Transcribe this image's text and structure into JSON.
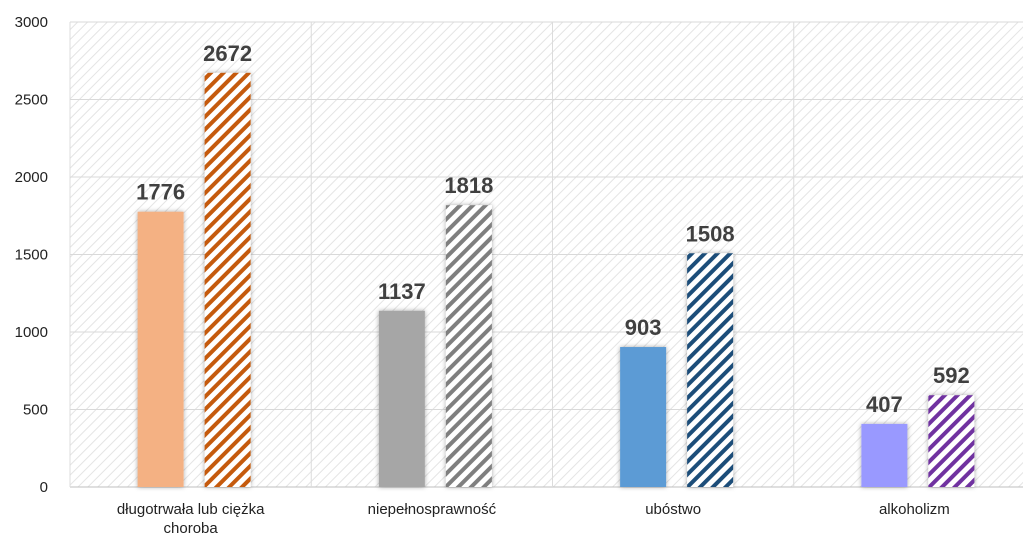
{
  "chart_data": {
    "type": "bar",
    "categories": [
      [
        "długotrwała lub ciężka",
        "choroba"
      ],
      [
        "niepełnosprawność"
      ],
      [
        "ubóstwo"
      ],
      [
        "alkoholizm"
      ]
    ],
    "series": [
      {
        "values": [
          1776,
          1137,
          903,
          407
        ]
      },
      {
        "values": [
          2672,
          1818,
          1508,
          592
        ]
      }
    ],
    "solid_colors": [
      "#f4b183",
      "#a6a6a6",
      "#5b9bd5",
      "#9999ff"
    ],
    "hatch_colors": [
      "#c55a11",
      "#7f7f7f",
      "#1f4e79",
      "#7030a0"
    ],
    "yticks": [
      0,
      500,
      1000,
      1500,
      2000,
      2500,
      3000
    ],
    "ylim": [
      0,
      3000
    ],
    "grid": true
  }
}
